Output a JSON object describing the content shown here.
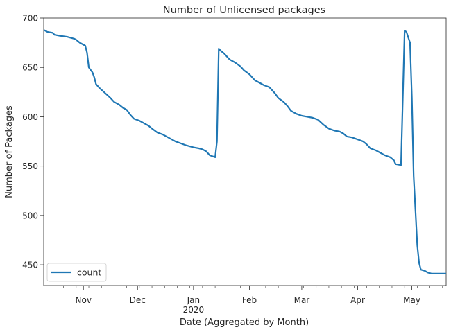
{
  "chart_data": {
    "type": "line",
    "title": "Number of Unlicensed packages",
    "xlabel": "Date (Aggregated by Month)",
    "ylabel": "Number of Packages",
    "xlim": [
      "2019-10-10",
      "2020-05-20"
    ],
    "ylim": [
      429,
      700
    ],
    "x_ticks": [
      {
        "date": "2019-11-01",
        "label": "Nov"
      },
      {
        "date": "2019-12-01",
        "label": "Dec"
      },
      {
        "date": "2020-01-01",
        "label": "Jan",
        "sublabel": "2020"
      },
      {
        "date": "2020-02-01",
        "label": "Feb"
      },
      {
        "date": "2020-03-01",
        "label": "Mar"
      },
      {
        "date": "2020-04-01",
        "label": "Apr"
      },
      {
        "date": "2020-05-01",
        "label": "May"
      }
    ],
    "y_ticks": [
      450,
      500,
      550,
      600,
      650,
      700
    ],
    "grid": false,
    "legend_position": "lower-left",
    "series": [
      {
        "name": "count",
        "color": "#1f77b4",
        "points": [
          [
            "2019-10-10",
            688
          ],
          [
            "2019-10-12",
            686
          ],
          [
            "2019-10-15",
            685
          ],
          [
            "2019-10-16",
            683
          ],
          [
            "2019-10-19",
            682
          ],
          [
            "2019-10-23",
            681
          ],
          [
            "2019-10-27",
            679
          ],
          [
            "2019-10-28",
            678
          ],
          [
            "2019-10-30",
            675
          ],
          [
            "2019-11-02",
            672
          ],
          [
            "2019-11-03",
            665
          ],
          [
            "2019-11-04",
            650
          ],
          [
            "2019-11-06",
            645
          ],
          [
            "2019-11-07",
            640
          ],
          [
            "2019-11-08",
            633
          ],
          [
            "2019-11-10",
            629
          ],
          [
            "2019-11-13",
            624
          ],
          [
            "2019-11-16",
            619
          ],
          [
            "2019-11-18",
            615
          ],
          [
            "2019-11-21",
            612
          ],
          [
            "2019-11-23",
            609
          ],
          [
            "2019-11-25",
            607
          ],
          [
            "2019-11-27",
            602
          ],
          [
            "2019-11-29",
            598
          ],
          [
            "2019-12-02",
            596
          ],
          [
            "2019-12-05",
            593
          ],
          [
            "2019-12-07",
            591
          ],
          [
            "2019-12-09",
            588
          ],
          [
            "2019-12-12",
            584
          ],
          [
            "2019-12-15",
            582
          ],
          [
            "2019-12-17",
            580
          ],
          [
            "2019-12-20",
            577
          ],
          [
            "2019-12-22",
            575
          ],
          [
            "2019-12-25",
            573
          ],
          [
            "2019-12-28",
            571
          ],
          [
            "2020-01-01",
            569
          ],
          [
            "2020-01-04",
            568
          ],
          [
            "2020-01-06",
            567
          ],
          [
            "2020-01-08",
            565
          ],
          [
            "2020-01-10",
            561
          ],
          [
            "2020-01-13",
            559
          ],
          [
            "2020-01-14",
            575
          ],
          [
            "2020-01-15",
            669
          ],
          [
            "2020-01-16",
            667
          ],
          [
            "2020-01-18",
            664
          ],
          [
            "2020-01-21",
            658
          ],
          [
            "2020-01-24",
            655
          ],
          [
            "2020-01-27",
            651
          ],
          [
            "2020-01-29",
            647
          ],
          [
            "2020-02-01",
            643
          ],
          [
            "2020-02-04",
            637
          ],
          [
            "2020-02-07",
            634
          ],
          [
            "2020-02-09",
            632
          ],
          [
            "2020-02-12",
            630
          ],
          [
            "2020-02-15",
            624
          ],
          [
            "2020-02-17",
            619
          ],
          [
            "2020-02-20",
            615
          ],
          [
            "2020-02-22",
            611
          ],
          [
            "2020-02-24",
            606
          ],
          [
            "2020-02-27",
            603
          ],
          [
            "2020-03-01",
            601
          ],
          [
            "2020-03-04",
            600
          ],
          [
            "2020-03-07",
            599
          ],
          [
            "2020-03-10",
            597
          ],
          [
            "2020-03-13",
            592
          ],
          [
            "2020-03-16",
            588
          ],
          [
            "2020-03-19",
            586
          ],
          [
            "2020-03-22",
            585
          ],
          [
            "2020-03-24",
            583
          ],
          [
            "2020-03-26",
            580
          ],
          [
            "2020-03-29",
            579
          ],
          [
            "2020-04-01",
            577
          ],
          [
            "2020-04-04",
            575
          ],
          [
            "2020-04-06",
            572
          ],
          [
            "2020-04-08",
            568
          ],
          [
            "2020-04-11",
            566
          ],
          [
            "2020-04-14",
            563
          ],
          [
            "2020-04-16",
            561
          ],
          [
            "2020-04-19",
            559
          ],
          [
            "2020-04-21",
            556
          ],
          [
            "2020-04-22",
            552
          ],
          [
            "2020-04-25",
            551
          ],
          [
            "2020-04-26",
            620
          ],
          [
            "2020-04-27",
            687
          ],
          [
            "2020-04-28",
            686
          ],
          [
            "2020-04-30",
            675
          ],
          [
            "2020-05-01",
            620
          ],
          [
            "2020-05-02",
            540
          ],
          [
            "2020-05-04",
            470
          ],
          [
            "2020-05-05",
            452
          ],
          [
            "2020-05-06",
            445
          ],
          [
            "2020-05-08",
            444
          ],
          [
            "2020-05-10",
            442
          ],
          [
            "2020-05-12",
            441
          ],
          [
            "2020-05-16",
            441
          ],
          [
            "2020-05-20",
            441
          ]
        ]
      }
    ]
  }
}
